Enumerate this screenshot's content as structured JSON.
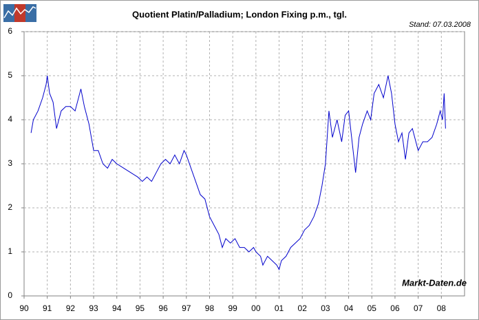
{
  "chart_data": {
    "type": "line",
    "title": "Quotient Platin/Palladium; London Fixing p.m., tgl.",
    "subtitle": "Stand: 07.03.2008",
    "source": "Markt-Daten.de",
    "x": [
      1990.3,
      1990.4,
      1990.6,
      1990.8,
      1990.95,
      1991.0,
      1991.1,
      1991.25,
      1991.4,
      1991.6,
      1991.8,
      1992.0,
      1992.2,
      1992.45,
      1992.6,
      1992.8,
      1993.0,
      1993.2,
      1993.4,
      1993.6,
      1993.8,
      1994.0,
      1994.3,
      1994.6,
      1994.9,
      1995.1,
      1995.3,
      1995.5,
      1995.7,
      1995.9,
      1996.1,
      1996.3,
      1996.5,
      1996.7,
      1996.9,
      1997.0,
      1997.2,
      1997.4,
      1997.6,
      1997.8,
      1998.0,
      1998.2,
      1998.4,
      1998.55,
      1998.7,
      1998.9,
      1999.1,
      1999.3,
      1999.5,
      1999.7,
      1999.9,
      2000.0,
      2000.2,
      2000.3,
      2000.5,
      2000.7,
      2000.9,
      2001.0,
      2001.1,
      2001.3,
      2001.5,
      2001.7,
      2001.9,
      2002.1,
      2002.3,
      2002.5,
      2002.7,
      2002.85,
      2003.0,
      2003.15,
      2003.3,
      2003.5,
      2003.7,
      2003.85,
      2004.0,
      2004.15,
      2004.3,
      2004.45,
      2004.6,
      2004.8,
      2004.95,
      2005.1,
      2005.3,
      2005.5,
      2005.7,
      2005.85,
      2006.0,
      2006.15,
      2006.3,
      2006.45,
      2006.6,
      2006.75,
      2006.9,
      2007.0,
      2007.2,
      2007.4,
      2007.6,
      2007.8,
      2007.95,
      2008.05,
      2008.12,
      2008.18
    ],
    "series": [
      {
        "name": "Quotient Platin/Palladium",
        "color": "#0000cc",
        "values": [
          3.7,
          4.0,
          4.2,
          4.5,
          4.8,
          5.0,
          4.6,
          4.4,
          3.8,
          4.2,
          4.3,
          4.3,
          4.2,
          4.7,
          4.3,
          3.9,
          3.3,
          3.3,
          3.0,
          2.9,
          3.1,
          3.0,
          2.9,
          2.8,
          2.7,
          2.6,
          2.7,
          2.6,
          2.8,
          3.0,
          3.1,
          3.0,
          3.2,
          3.0,
          3.3,
          3.2,
          2.9,
          2.6,
          2.3,
          2.2,
          1.8,
          1.6,
          1.4,
          1.1,
          1.3,
          1.2,
          1.3,
          1.1,
          1.1,
          1.0,
          1.1,
          1.0,
          0.9,
          0.7,
          0.9,
          0.8,
          0.7,
          0.6,
          0.8,
          0.9,
          1.1,
          1.2,
          1.3,
          1.5,
          1.6,
          1.8,
          2.1,
          2.5,
          3.0,
          4.2,
          3.6,
          4.0,
          3.5,
          4.1,
          4.2,
          3.5,
          2.8,
          3.6,
          3.9,
          4.2,
          4.0,
          4.6,
          4.8,
          4.5,
          5.0,
          4.6,
          3.9,
          3.5,
          3.7,
          3.1,
          3.7,
          3.8,
          3.5,
          3.3,
          3.5,
          3.5,
          3.6,
          3.9,
          4.2,
          4.0,
          4.6,
          3.8
        ]
      }
    ],
    "xlim": [
      1990,
      2009
    ],
    "xticks": [
      {
        "value": 1990,
        "label": "90"
      },
      {
        "value": 1991,
        "label": "91"
      },
      {
        "value": 1992,
        "label": "92"
      },
      {
        "value": 1993,
        "label": "93"
      },
      {
        "value": 1994,
        "label": "94"
      },
      {
        "value": 1995,
        "label": "95"
      },
      {
        "value": 1996,
        "label": "96"
      },
      {
        "value": 1997,
        "label": "97"
      },
      {
        "value": 1998,
        "label": "98"
      },
      {
        "value": 1999,
        "label": "99"
      },
      {
        "value": 2000,
        "label": "00"
      },
      {
        "value": 2001,
        "label": "01"
      },
      {
        "value": 2002,
        "label": "02"
      },
      {
        "value": 2003,
        "label": "03"
      },
      {
        "value": 2004,
        "label": "04"
      },
      {
        "value": 2005,
        "label": "05"
      },
      {
        "value": 2006,
        "label": "06"
      },
      {
        "value": 2007,
        "label": "07"
      },
      {
        "value": 2008,
        "label": "08"
      }
    ],
    "ylim": [
      0,
      6
    ],
    "yticks": [
      0,
      1,
      2,
      3,
      4,
      5,
      6
    ],
    "grid": true
  }
}
